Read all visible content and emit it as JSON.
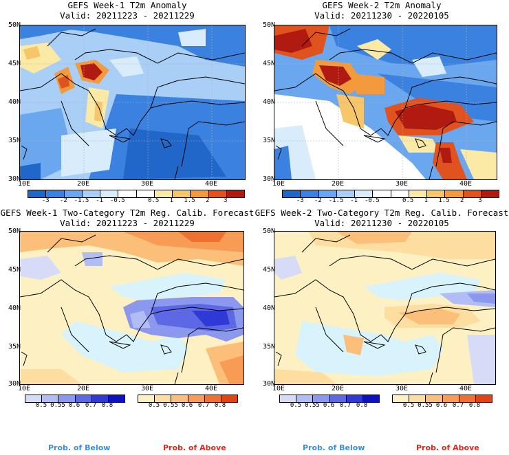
{
  "panels": [
    {
      "title": "GEFS Week-1 T2m Anomaly",
      "valid": "Valid: 20211223 - 20211229"
    },
    {
      "title": "GEFS Week-2 T2m Anomaly",
      "valid": "Valid: 20211230 - 20220105"
    },
    {
      "title": "GEFS Week-1 Two-Category T2m Reg. Calib. Forecast",
      "valid": "Valid: 20211223 - 20211229"
    },
    {
      "title": "GEFS Week-2 Two-Category T2m Reg. Calib. Forecast",
      "valid": "Valid: 20211230 - 20220105"
    }
  ],
  "axes": {
    "lat_labels": [
      "50N",
      "45N",
      "40N",
      "35N",
      "30N"
    ],
    "lon_labels": [
      "10E",
      "20E",
      "30E",
      "40E"
    ]
  },
  "anomaly_colorbar": {
    "colors": [
      "#2166c9",
      "#3b82e0",
      "#6aa7ee",
      "#a9cff6",
      "#d8ecfb",
      "#ffffff",
      "#ffffff",
      "#fbe9a6",
      "#f7c56a",
      "#f29a3c",
      "#e0531f",
      "#b01a10"
    ],
    "labels": [
      "-3",
      "-2",
      "-1.5",
      "-1",
      "-0.5",
      "0.5",
      "1",
      "1.5",
      "2",
      "3"
    ]
  },
  "prob_below_colorbar": {
    "colors": [
      "#d6dcf8",
      "#b3bdf5",
      "#8c98ee",
      "#5d68e4",
      "#2e39d6",
      "#0c12c4"
    ],
    "labels": [
      "0.5",
      "0.55",
      "0.6",
      "0.7",
      "0.8"
    ]
  },
  "prob_above_colorbar": {
    "colors": [
      "#fdf0c2",
      "#fddda0",
      "#fbbf79",
      "#f79b55",
      "#f0702f",
      "#e24312"
    ],
    "labels": [
      "0.5",
      "0.55",
      "0.6",
      "0.7",
      "0.8"
    ]
  },
  "legend": {
    "below": "Prob. of Below",
    "above": "Prob. of Above",
    "below_color": "#3a8de0",
    "above_color": "#e2261a"
  }
}
